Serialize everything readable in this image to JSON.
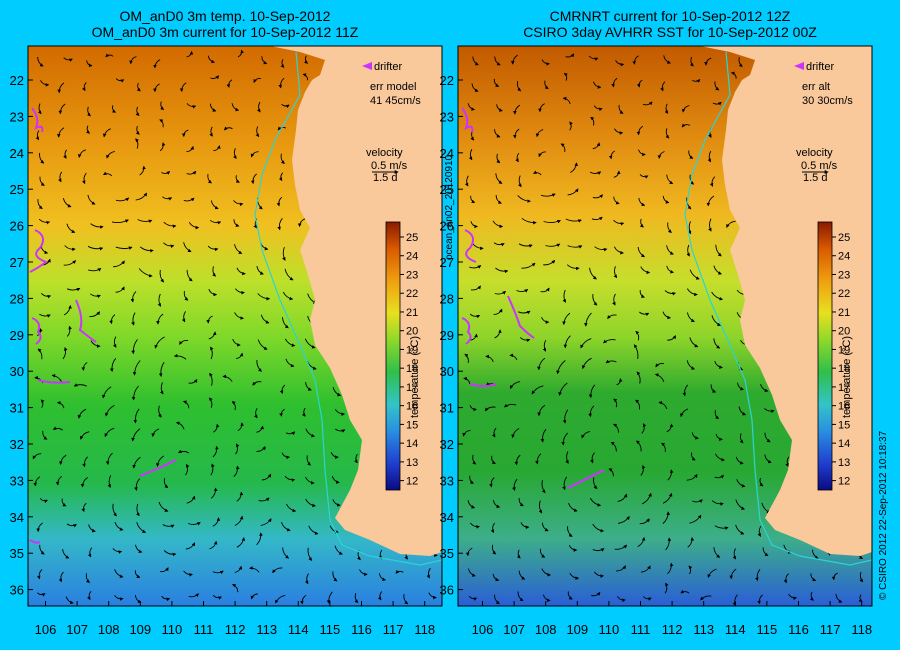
{
  "panels": [
    {
      "title_line1": "OM_anD0 3m temp. 10-Sep-2012",
      "title_line2": "OM_anD0 3m current for 10-Sep-2012 11Z",
      "drifter_label": "drifter",
      "err_label": "err model",
      "err_value": "41 45cm/s",
      "velocity_label": "velocity",
      "velocity_speed": "0.5 m/s",
      "velocity_time": "1.5 d"
    },
    {
      "title_line1": "CMRNRT current for 10-Sep-2012 12Z",
      "title_line2": "CSIRO 3day AVHRR SST for 10-Sep-2012 00Z",
      "drifter_label": "drifter",
      "err_label": "err alt",
      "err_value": "30 30cm/s",
      "velocity_label": "velocity",
      "velocity_speed": "0.5 m/s",
      "velocity_time": "1.5 d"
    }
  ],
  "latitude_ticks": [
    "22",
    "23",
    "24",
    "25",
    "26",
    "27",
    "28",
    "29",
    "30",
    "31",
    "32",
    "33",
    "34",
    "35",
    "36"
  ],
  "longitude_ticks": [
    "106",
    "107",
    "108",
    "109",
    "110",
    "111",
    "112",
    "113",
    "114",
    "115",
    "116",
    "117",
    "118"
  ],
  "colorbar": {
    "label": "temperature (°C)",
    "ticks": [
      "12",
      "13",
      "14",
      "15",
      "16",
      "17",
      "18",
      "19",
      "20",
      "21",
      "22",
      "23",
      "24",
      "25"
    ],
    "min": 11.5,
    "max": 25.8
  },
  "mid_side_label": "ocean_an02_20120910",
  "right_side_label": "© CSIRO 2012   22-Sep-2012 10:18:37",
  "colors": {
    "background": "#00ccff",
    "land": "#f9c89b",
    "drifter": "#cc33ff",
    "shelf_contour": "#2bd4d4"
  }
}
